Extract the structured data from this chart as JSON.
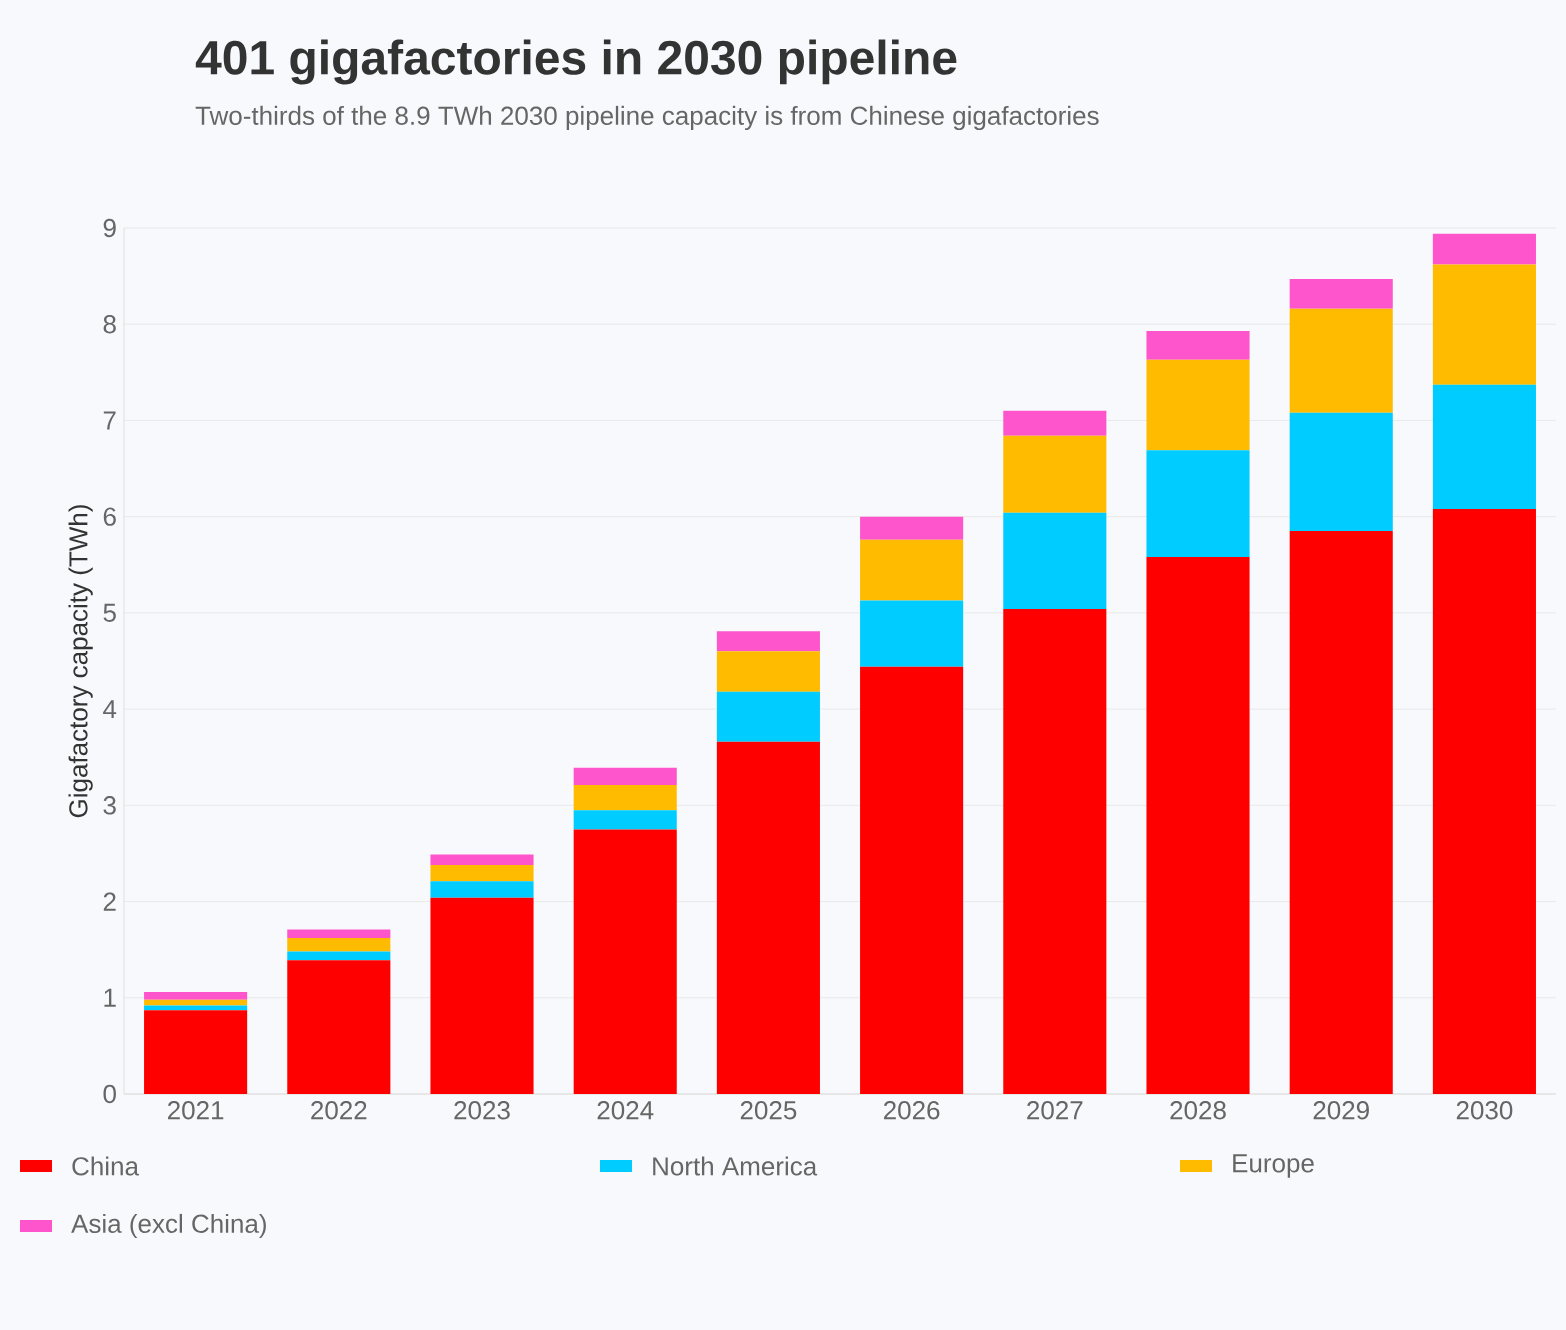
{
  "chart_data": {
    "type": "bar",
    "stacked": true,
    "title": "401 gigafactories in 2030 pipeline",
    "subtitle": "Two-thirds of the 8.9 TWh 2030 pipeline capacity is from Chinese gigafactories",
    "ylabel": "Gigafactory capacity (TWh)",
    "categories": [
      "2021",
      "2022",
      "2023",
      "2024",
      "2025",
      "2026",
      "2027",
      "2028",
      "2029",
      "2030"
    ],
    "series": [
      {
        "name": "China",
        "color": "#ff0000",
        "values": [
          0.87,
          1.39,
          2.04,
          2.75,
          3.66,
          4.44,
          5.04,
          5.58,
          5.85,
          6.08
        ]
      },
      {
        "name": "North America",
        "color": "#00ccff",
        "values": [
          0.05,
          0.09,
          0.17,
          0.2,
          0.52,
          0.69,
          1.0,
          1.11,
          1.23,
          1.29
        ]
      },
      {
        "name": "Europe",
        "color": "#ffbb00",
        "values": [
          0.06,
          0.14,
          0.17,
          0.26,
          0.42,
          0.63,
          0.8,
          0.94,
          1.08,
          1.25
        ]
      },
      {
        "name": "Asia (excl China)",
        "color": "#ff55cc",
        "values": [
          0.08,
          0.09,
          0.11,
          0.18,
          0.21,
          0.24,
          0.26,
          0.3,
          0.31,
          0.32
        ]
      }
    ],
    "ylim": [
      0,
      9
    ],
    "yticks": [
      0,
      1,
      2,
      3,
      4,
      5,
      6,
      7,
      8,
      9
    ],
    "grid": "y",
    "legend": "bottom"
  }
}
